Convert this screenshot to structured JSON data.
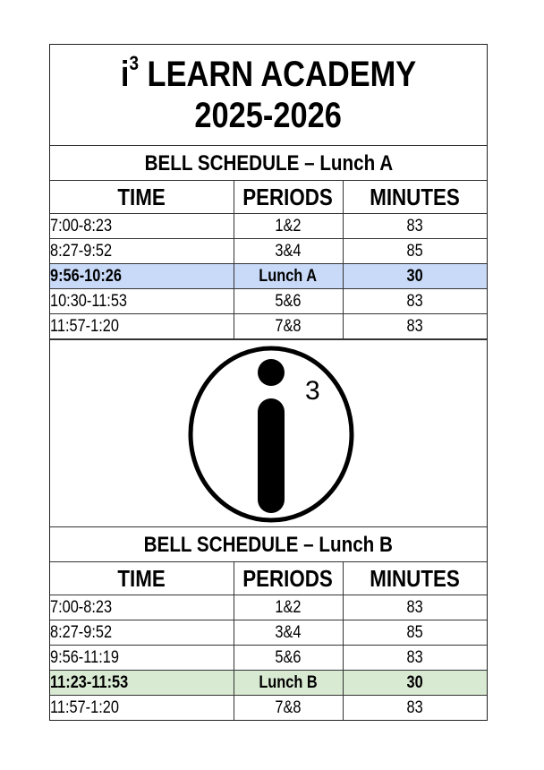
{
  "title": {
    "prefix": "i",
    "superscript": "3",
    "name": "LEARN ACADEMY",
    "year": "2025-2026"
  },
  "logo": {
    "superscript": "3"
  },
  "columns": [
    "TIME",
    "PERIODS",
    "MINUTES"
  ],
  "schedule_a": {
    "heading": "BELL SCHEDULE – Lunch A",
    "highlight_color": "#c9daf8",
    "rows": [
      {
        "time": "7:00-8:23",
        "periods": "1&2",
        "minutes": "83"
      },
      {
        "time": "8:27-9:52",
        "periods": "3&4",
        "minutes": "85"
      },
      {
        "time": "9:56-10:26",
        "periods": "Lunch A",
        "minutes": "30"
      },
      {
        "time": "10:30-11:53",
        "periods": "5&6",
        "minutes": "83"
      },
      {
        "time": "11:57-1:20",
        "periods": "7&8",
        "minutes": "83"
      }
    ]
  },
  "schedule_b": {
    "heading": "BELL SCHEDULE – Lunch B",
    "highlight_color": "#d9ead3",
    "rows": [
      {
        "time": "7:00-8:23",
        "periods": "1&2",
        "minutes": "83"
      },
      {
        "time": "8:27-9:52",
        "periods": "3&4",
        "minutes": "85"
      },
      {
        "time": "9:56-11:19",
        "periods": "5&6",
        "minutes": "83"
      },
      {
        "time": "11:23-11:53",
        "periods": "Lunch B",
        "minutes": "30"
      },
      {
        "time": "11:57-1:20",
        "periods": "7&8",
        "minutes": "83"
      }
    ]
  }
}
